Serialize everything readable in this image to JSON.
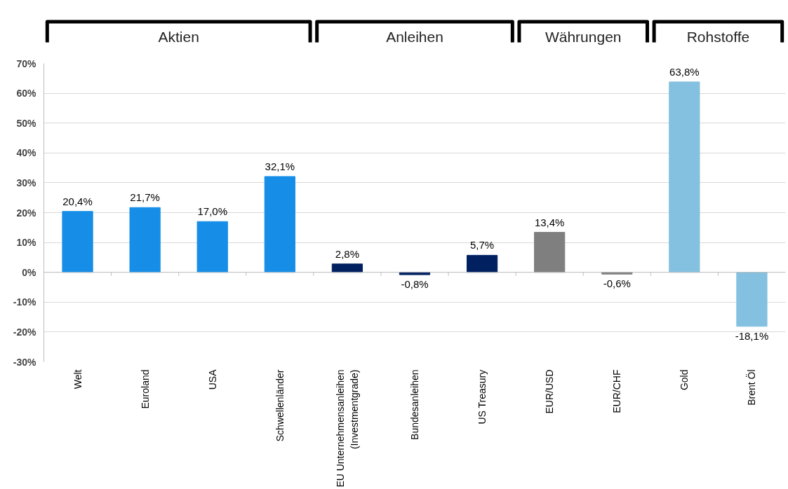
{
  "chart_data": {
    "type": "bar",
    "categories": [
      "Welt",
      "Euroland",
      "USA",
      "Schwellenländer",
      "EU Unternehmensanleihen\n(Investmentgrade)",
      "Bundesanleihen",
      "US Treasury",
      "EUR/USD",
      "EUR/CHF",
      "Gold",
      "Brent Öl"
    ],
    "values": [
      20.4,
      21.7,
      17.0,
      32.1,
      2.8,
      -0.8,
      5.7,
      13.4,
      -0.6,
      63.8,
      -18.1
    ],
    "colors": [
      "#168ee8",
      "#168ee8",
      "#168ee8",
      "#168ee8",
      "#002060",
      "#002060",
      "#002060",
      "#7f7f7f",
      "#7f7f7f",
      "#84c0df",
      "#84c0df"
    ],
    "ylim": [
      -30,
      70
    ],
    "yticks": [
      {
        "value": -30,
        "label": "-30%"
      },
      {
        "value": -20,
        "label": "-20%"
      },
      {
        "value": -10,
        "label": "-10%"
      },
      {
        "value": 0,
        "label": "0%"
      },
      {
        "value": 10,
        "label": "10%"
      },
      {
        "value": 20,
        "label": "20%"
      },
      {
        "value": 30,
        "label": "30%"
      },
      {
        "value": 40,
        "label": "40%"
      },
      {
        "value": 50,
        "label": "50%"
      },
      {
        "value": 60,
        "label": "60%"
      },
      {
        "value": 70,
        "label": "70%"
      }
    ],
    "value_labels": [
      "20,4%",
      "21,7%",
      "17,0%",
      "32,1%",
      "2,8%",
      "-0,8%",
      "5,7%",
      "13,4%",
      "-0,6%",
      "63,8%",
      "-18,1%"
    ],
    "grid": "y",
    "annotations": [
      "Aktien",
      "Anleihen",
      "Währungen",
      "Rohstoffe"
    ]
  }
}
